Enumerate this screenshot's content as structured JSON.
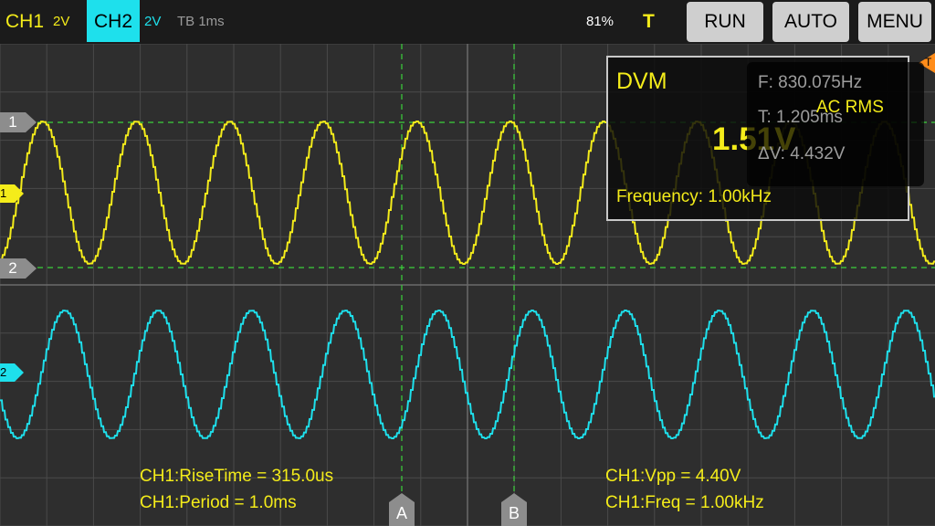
{
  "top_bar": {
    "ch1_label": "CH1",
    "ch1_scale": "2V",
    "ch2_label": "CH2",
    "ch2_scale": "2V",
    "timebase": "TB 1ms",
    "battery": "81%",
    "trigger_indicator": "T",
    "run_label": "RUN",
    "auto_label": "AUTO",
    "menu_label": "MENU"
  },
  "markers": {
    "ref1": "1",
    "ref2": "2",
    "ch1_marker": "1",
    "ch2_marker": "2",
    "trigger_marker": "T",
    "cursor_a": "A",
    "cursor_b": "B"
  },
  "measurements": {
    "rise_time": "CH1:RiseTime = 315.0us",
    "period": "CH1:Period = 1.0ms",
    "vpp": "CH1:Vpp = 4.40V",
    "freq": "CH1:Freq = 1.00kHz"
  },
  "dvm": {
    "title": "DVM",
    "value": "1.51V",
    "mode": "AC RMS",
    "frequency": "Frequency: 1.00kHz"
  },
  "cursor_info": {
    "f": "F: 830.075Hz",
    "t": "T: 1.205ms",
    "dv": "ΔV: 4.432V"
  },
  "colors": {
    "ch1": "#f4ec1a",
    "ch2": "#1ee0ec",
    "grid": "#555555",
    "cursor": "#3bd13b"
  }
}
